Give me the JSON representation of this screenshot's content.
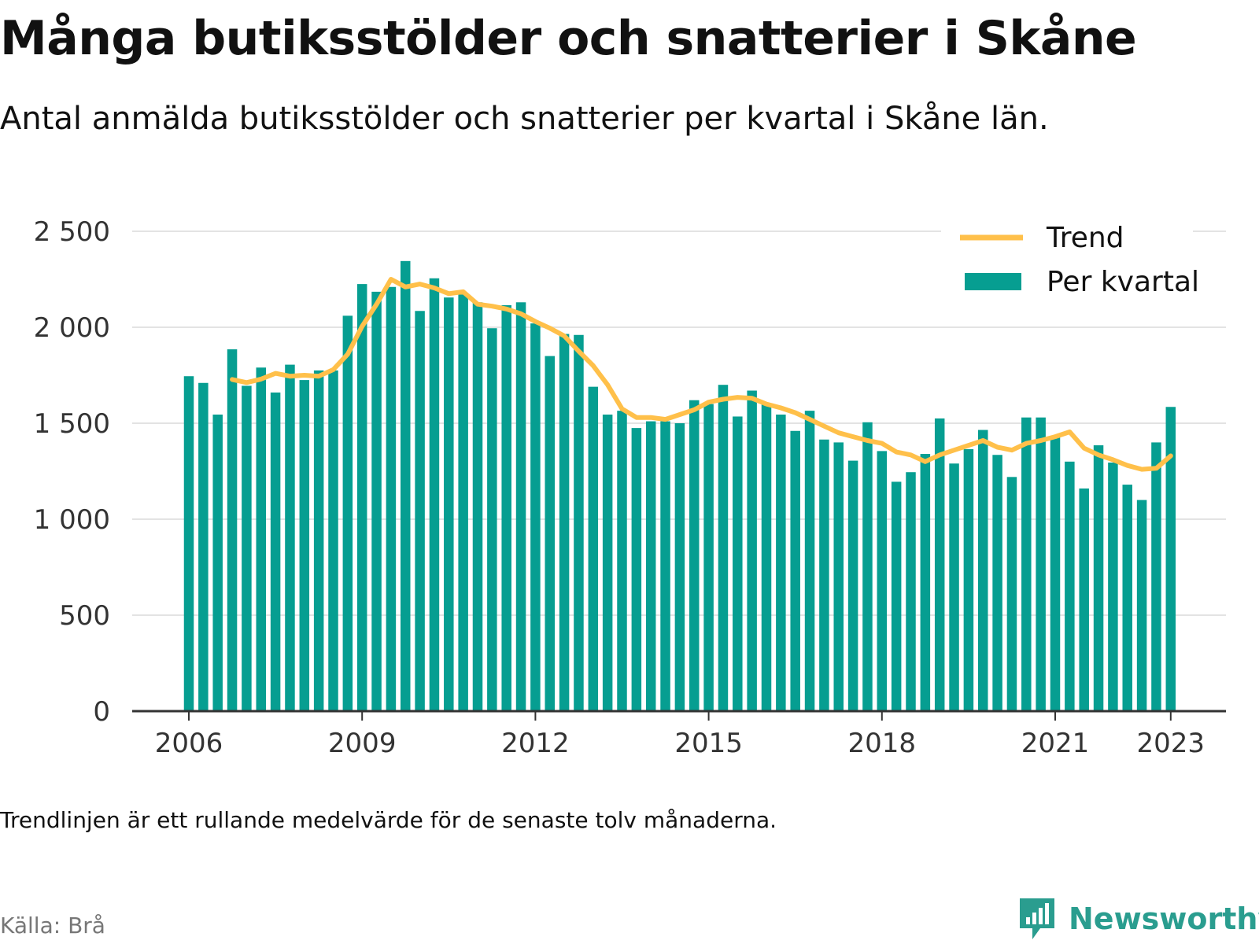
{
  "title": "Många butiksstölder och snatterier i Skåne",
  "subtitle": "Antal anmälda butiksstölder och snatterier per kvartal i Skåne län.",
  "footnote": "Trendlinjen är ett rullande medelvärde för de senaste tolv månaderna.",
  "source": "Källa: Brå",
  "brand": {
    "name": "Newsworthy",
    "color": "#2a9d8f",
    "icon": "newsworthy-logo-icon"
  },
  "colors": {
    "bars": "#069e91",
    "trend": "#ffc04a",
    "grid": "#e3e3e3",
    "axis": "#333333",
    "source": "#777777"
  },
  "chart_data": {
    "type": "bar",
    "title": "Många butiksstölder och snatterier i Skåne",
    "subtitle": "Antal anmälda butiksstölder och snatterier per kvartal i Skåne län.",
    "x_start": "2006-Q1",
    "x_end": "2023-Q1",
    "x_ticks": [
      "2006",
      "2009",
      "2012",
      "2015",
      "2018",
      "2021",
      "2023"
    ],
    "y_ticks": [
      "0",
      "500",
      "1 000",
      "1 500",
      "2 000",
      "2 500"
    ],
    "ylim": [
      0,
      2500
    ],
    "grid": true,
    "legend_position": "top-right",
    "legend": [
      "Trend",
      "Per kvartal"
    ],
    "series": [
      {
        "name": "Per kvartal",
        "type": "bar",
        "values": [
          1745,
          1710,
          1545,
          1885,
          1695,
          1790,
          1660,
          1805,
          1725,
          1775,
          1775,
          2060,
          2225,
          2185,
          2210,
          2345,
          2085,
          2255,
          2155,
          2170,
          2130,
          1995,
          2115,
          2130,
          2020,
          1850,
          1965,
          1960,
          1690,
          1545,
          1565,
          1475,
          1510,
          1510,
          1500,
          1620,
          1600,
          1700,
          1535,
          1670,
          1600,
          1545,
          1460,
          1565,
          1415,
          1400,
          1305,
          1505,
          1355,
          1195,
          1245,
          1340,
          1525,
          1290,
          1365,
          1465,
          1335,
          1220,
          1530,
          1530,
          1430,
          1300,
          1160,
          1385,
          1295,
          1180,
          1100,
          1400,
          1585
        ]
      },
      {
        "name": "Trend",
        "type": "line",
        "values": [
          null,
          null,
          null,
          1728,
          1712,
          1730,
          1760,
          1745,
          1750,
          1745,
          1779,
          1860,
          2005,
          2120,
          2250,
          2210,
          2225,
          2205,
          2175,
          2185,
          2120,
          2110,
          2095,
          2070,
          2030,
          1995,
          1955,
          1875,
          1800,
          1700,
          1575,
          1530,
          1530,
          1520,
          1545,
          1570,
          1610,
          1625,
          1635,
          1630,
          1600,
          1580,
          1555,
          1520,
          1485,
          1450,
          1430,
          1410,
          1395,
          1350,
          1335,
          1300,
          1335,
          1360,
          1385,
          1410,
          1375,
          1360,
          1395,
          1410,
          1430,
          1455,
          1370,
          1335,
          1310,
          1280,
          1260,
          1265,
          1330
        ]
      }
    ]
  }
}
